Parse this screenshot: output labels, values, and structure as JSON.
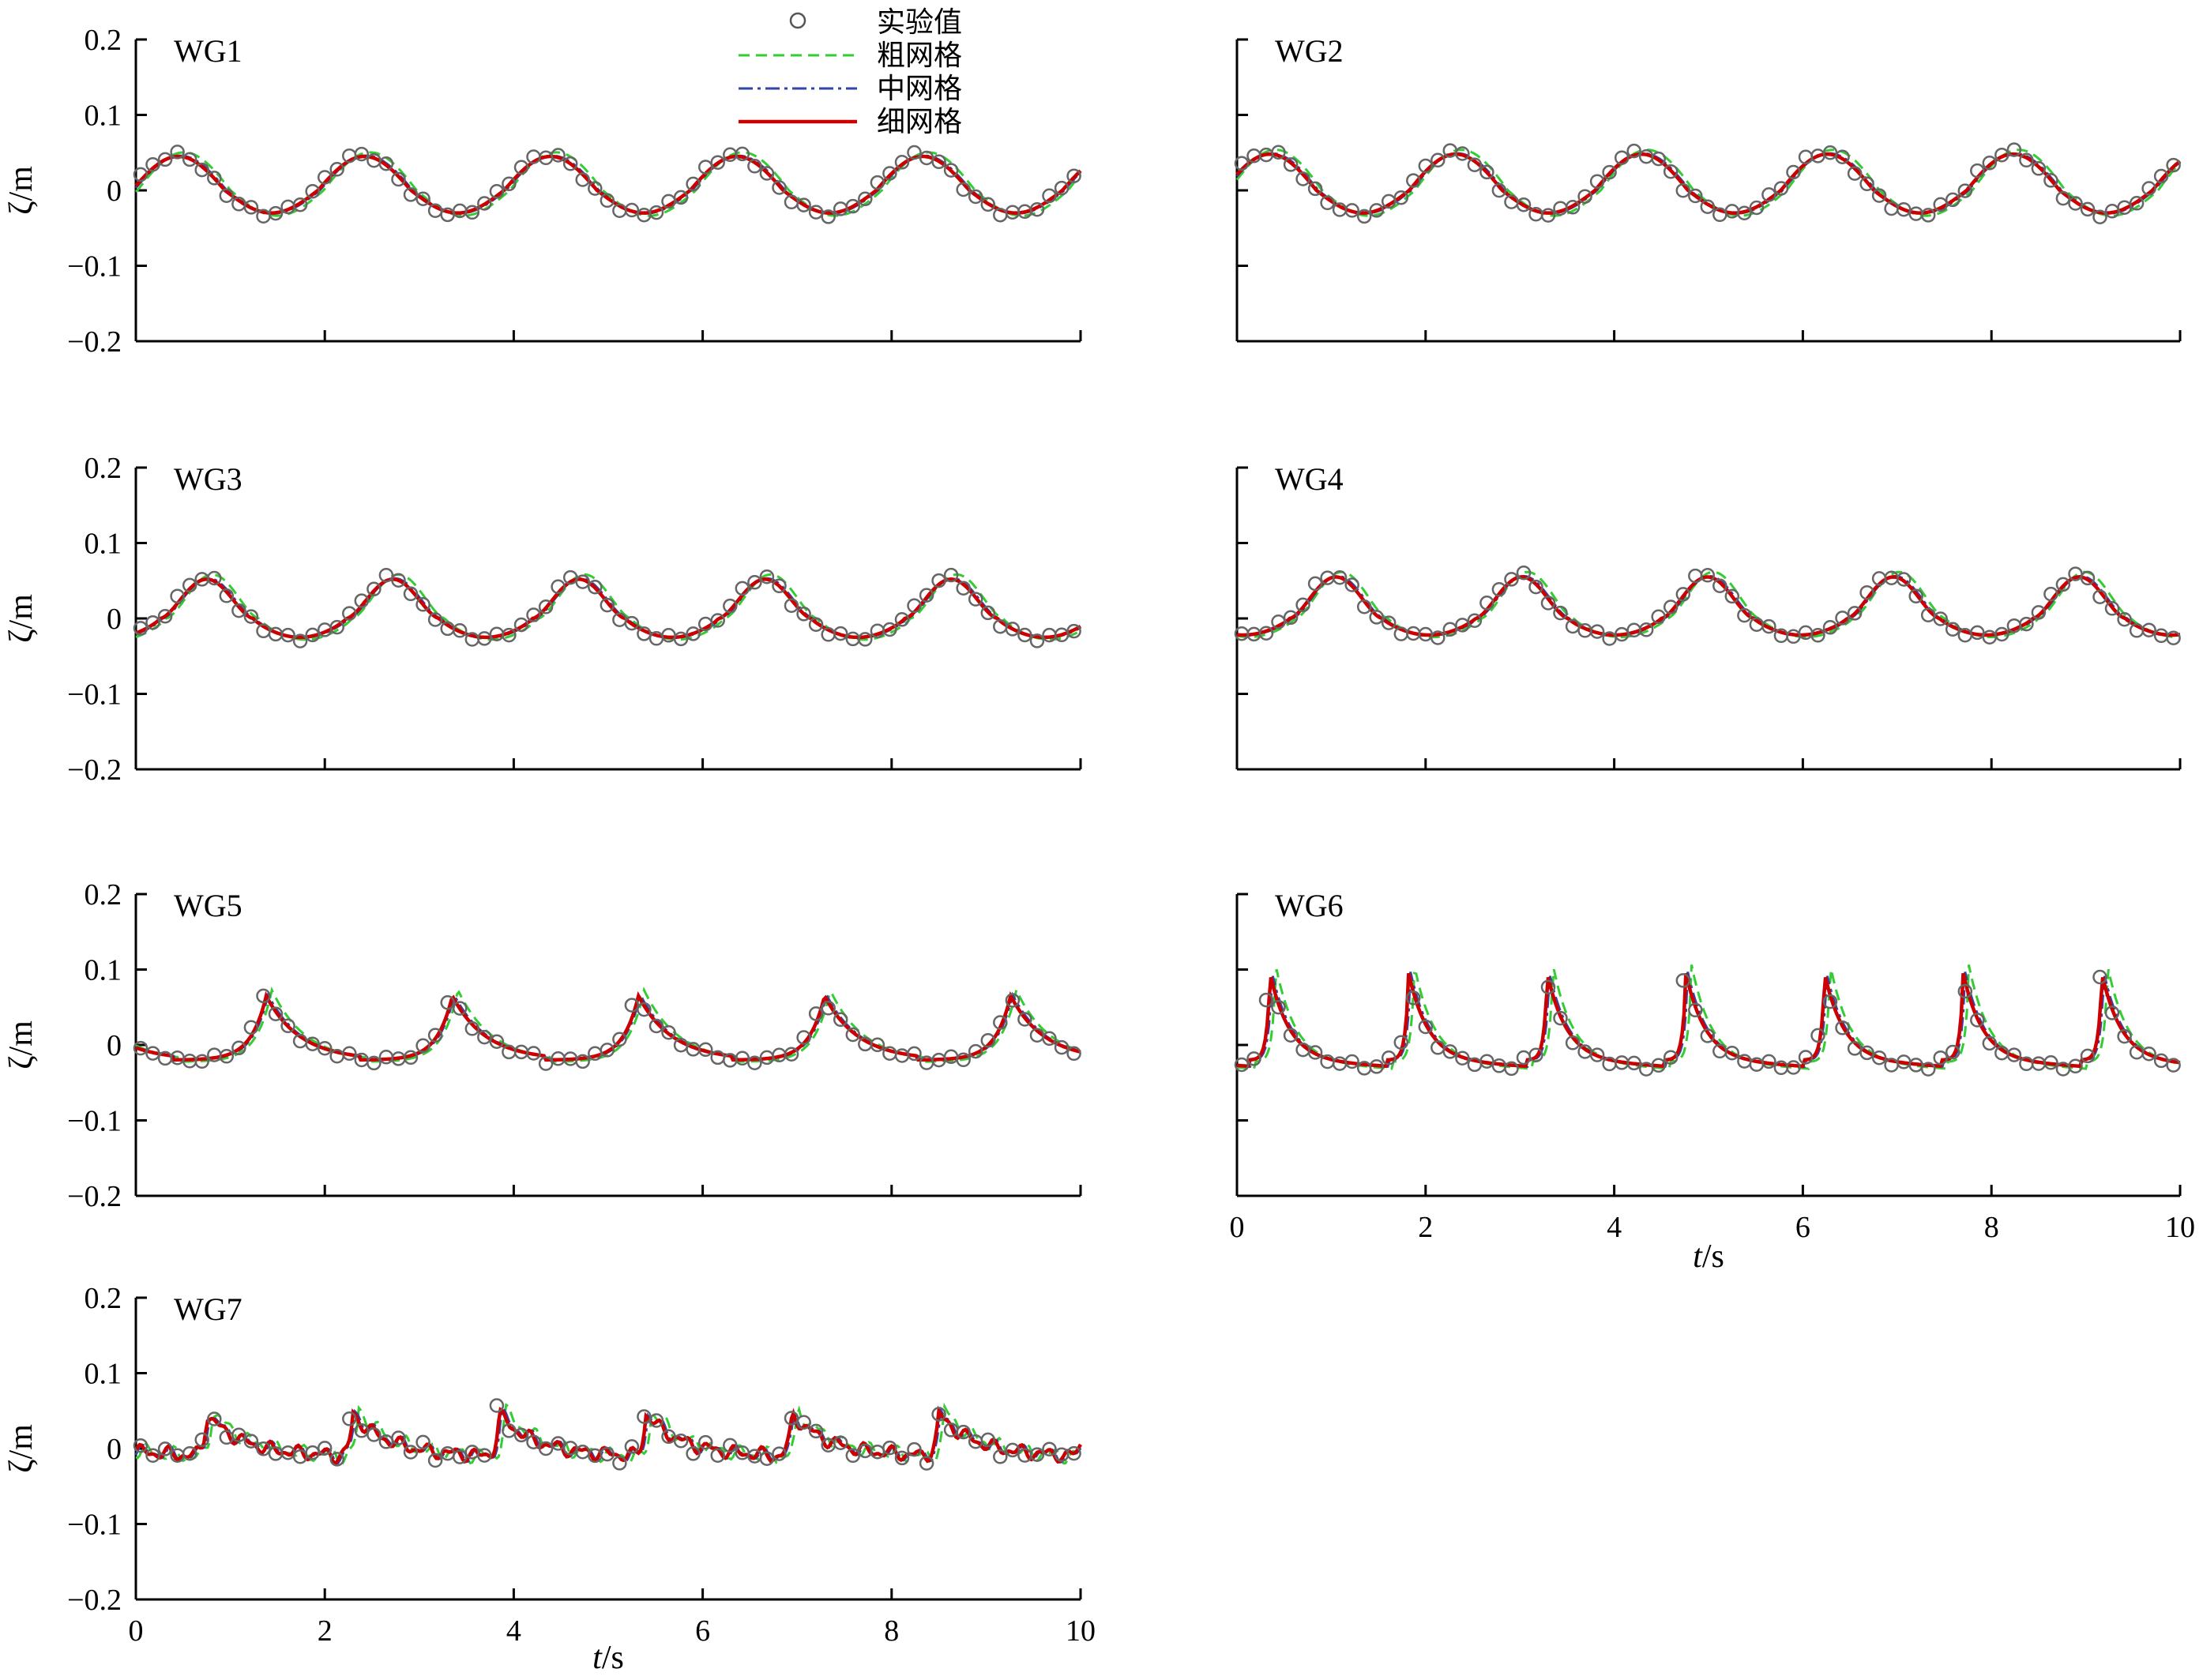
{
  "figure": {
    "ylabel": "ζ/m",
    "xlabel_italic": "t",
    "xlabel_unit": "/s"
  },
  "legend": [
    {
      "label": "实验值",
      "color": "#555555",
      "style": "circle"
    },
    {
      "label": "粗网格",
      "color": "#33cc33",
      "style": "dashed"
    },
    {
      "label": "中网格",
      "color": "#3344aa",
      "style": "dashdot"
    },
    {
      "label": "细网格",
      "color": "#cc0000",
      "style": "solid"
    }
  ],
  "chart_data": [
    {
      "type": "line",
      "title": "WG1",
      "xlim": [
        0,
        10
      ],
      "ylim": [
        -0.2,
        0.2
      ],
      "yticks": [
        "0.2",
        "0.1",
        "0",
        "−0.1",
        "−0.2"
      ],
      "xticks": [],
      "period": 1.97,
      "amplitude_crest": 0.045,
      "amplitude_trough": -0.03,
      "phase": 0.45,
      "shape": "sine"
    },
    {
      "type": "line",
      "title": "WG2",
      "xlim": [
        0,
        10
      ],
      "ylim": [
        -0.2,
        0.2
      ],
      "yticks": [],
      "xticks": [],
      "period": 1.97,
      "amplitude_crest": 0.048,
      "amplitude_trough": -0.03,
      "phase": 0.35,
      "shape": "sine"
    },
    {
      "type": "line",
      "title": "WG3",
      "xlim": [
        0,
        10
      ],
      "ylim": [
        -0.2,
        0.2
      ],
      "yticks": [
        "0.2",
        "0.1",
        "0",
        "−0.1",
        "−0.2"
      ],
      "xticks": [],
      "period": 1.97,
      "amplitude_crest": 0.052,
      "amplitude_trough": -0.025,
      "phase": 0.75,
      "shape": "peaked"
    },
    {
      "type": "line",
      "title": "WG4",
      "xlim": [
        0,
        10
      ],
      "ylim": [
        -0.2,
        0.2
      ],
      "yticks": [],
      "xticks": [],
      "period": 1.97,
      "amplitude_crest": 0.055,
      "amplitude_trough": -0.022,
      "phase": 1.05,
      "shape": "peaked"
    },
    {
      "type": "line",
      "title": "WG5",
      "xlim": [
        0,
        10
      ],
      "ylim": [
        -0.2,
        0.2
      ],
      "yticks": [
        "0.2",
        "0.1",
        "0",
        "−0.1",
        "−0.2"
      ],
      "xticks": [],
      "period": 1.97,
      "amplitude_crest": 0.065,
      "amplitude_trough": -0.02,
      "phase": 1.38,
      "shape": "sharp"
    },
    {
      "type": "line",
      "title": "WG6",
      "xlim": [
        0,
        10
      ],
      "ylim": [
        -0.2,
        0.2
      ],
      "yticks": [],
      "xticks": [
        "0",
        "2",
        "4",
        "6",
        "8",
        "10"
      ],
      "period": 1.47,
      "amplitude_crest": 0.085,
      "amplitude_trough": -0.02,
      "phase": 0.35,
      "shape": "spike"
    },
    {
      "type": "line",
      "title": "WG7",
      "xlim": [
        0,
        10
      ],
      "ylim": [
        -0.2,
        0.2
      ],
      "yticks": [
        "0.2",
        "0.1",
        "0",
        "−0.1",
        "−0.2"
      ],
      "xticks": [
        "0",
        "2",
        "4",
        "6",
        "8",
        "10"
      ],
      "period": 1.55,
      "amplitude_crest": 0.045,
      "amplitude_trough": -0.01,
      "phase": 0.75,
      "shape": "noisy"
    }
  ]
}
